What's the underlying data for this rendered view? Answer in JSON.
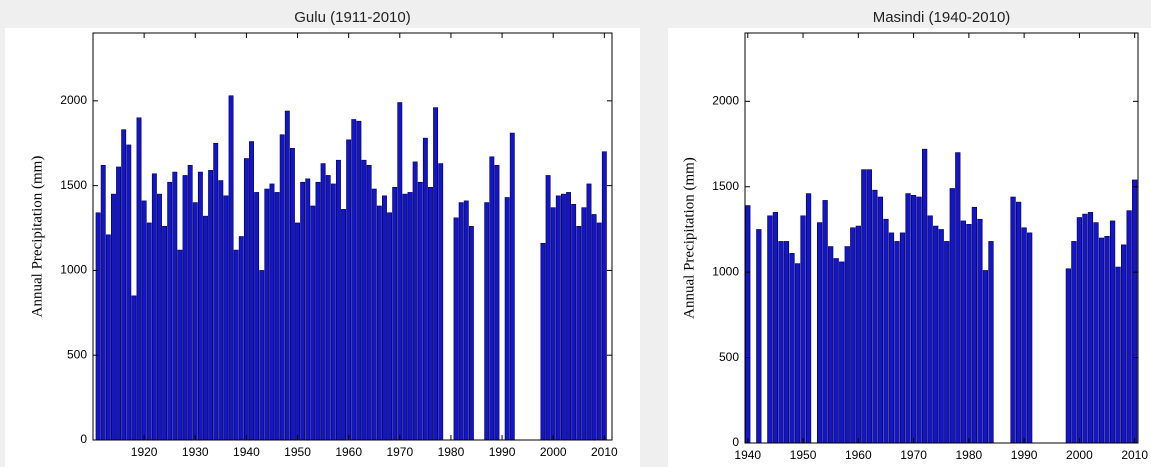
{
  "chart_data": [
    {
      "type": "bar",
      "title": "Gulu (1911-2010)",
      "y_label": "Annual Precipitation (mm)",
      "color": "#1414c8",
      "x": [
        1911,
        1912,
        1913,
        1914,
        1915,
        1916,
        1917,
        1918,
        1919,
        1920,
        1921,
        1922,
        1923,
        1924,
        1925,
        1926,
        1927,
        1928,
        1929,
        1930,
        1931,
        1932,
        1933,
        1934,
        1935,
        1936,
        1937,
        1938,
        1939,
        1940,
        1941,
        1942,
        1943,
        1944,
        1945,
        1946,
        1947,
        1948,
        1949,
        1950,
        1951,
        1952,
        1953,
        1954,
        1955,
        1956,
        1957,
        1958,
        1959,
        1960,
        1961,
        1962,
        1963,
        1964,
        1965,
        1966,
        1967,
        1968,
        1969,
        1970,
        1971,
        1972,
        1973,
        1974,
        1975,
        1976,
        1977,
        1978,
        1979,
        1980,
        1981,
        1982,
        1983,
        1984,
        1985,
        1986,
        1987,
        1988,
        1989,
        1990,
        1991,
        1992,
        1993,
        1994,
        1995,
        1996,
        1997,
        1998,
        1999,
        2000,
        2001,
        2002,
        2003,
        2004,
        2005,
        2006,
        2007,
        2008,
        2009,
        2010
      ],
      "values": [
        1340,
        1620,
        1210,
        1450,
        1610,
        1830,
        1740,
        850,
        1900,
        1410,
        1280,
        1570,
        1450,
        1260,
        1520,
        1580,
        1120,
        1560,
        1620,
        1400,
        1580,
        1320,
        1590,
        1750,
        1530,
        1440,
        2030,
        1120,
        1200,
        1660,
        1760,
        1460,
        1000,
        1480,
        1510,
        1460,
        1800,
        1940,
        1720,
        1280,
        1520,
        1540,
        1380,
        1520,
        1630,
        1560,
        1510,
        1650,
        1360,
        1770,
        1890,
        1880,
        1650,
        1620,
        1480,
        1380,
        1440,
        1340,
        1490,
        1990,
        1450,
        1460,
        1640,
        1520,
        1780,
        1490,
        1960,
        1630,
        null,
        null,
        1310,
        1400,
        1410,
        1260,
        null,
        null,
        1400,
        1670,
        1620,
        null,
        1430,
        1810,
        null,
        null,
        null,
        null,
        null,
        1160,
        1560,
        1370,
        1440,
        1450,
        1460,
        1390,
        1260,
        1370,
        1510,
        1330,
        1280,
        1700
      ],
      "xlim": [
        1910,
        2011.5
      ],
      "xticks": [
        1920,
        1930,
        1940,
        1950,
        1960,
        1970,
        1980,
        1990,
        2000,
        2010
      ],
      "ylim": [
        0,
        2400
      ],
      "yticks": [
        0,
        500,
        1000,
        1500,
        2000
      ]
    },
    {
      "type": "bar",
      "title": "Masindi (1940-2010)",
      "y_label": "Annual Precipitation (mm)",
      "color": "#1414c8",
      "x": [
        1940,
        1941,
        1942,
        1943,
        1944,
        1945,
        1946,
        1947,
        1948,
        1949,
        1950,
        1951,
        1952,
        1953,
        1954,
        1955,
        1956,
        1957,
        1958,
        1959,
        1960,
        1961,
        1962,
        1963,
        1964,
        1965,
        1966,
        1967,
        1968,
        1969,
        1970,
        1971,
        1972,
        1973,
        1974,
        1975,
        1976,
        1977,
        1978,
        1979,
        1980,
        1981,
        1982,
        1983,
        1984,
        1985,
        1986,
        1987,
        1988,
        1989,
        1990,
        1991,
        1992,
        1993,
        1994,
        1995,
        1996,
        1997,
        1998,
        1999,
        2000,
        2001,
        2002,
        2003,
        2004,
        2005,
        2006,
        2007,
        2008,
        2009,
        2010
      ],
      "values": [
        1390,
        null,
        1250,
        null,
        1330,
        1350,
        1180,
        1180,
        1110,
        1050,
        1330,
        1460,
        null,
        1290,
        1420,
        1150,
        1080,
        1060,
        1150,
        1260,
        1270,
        1600,
        1600,
        1480,
        1440,
        1310,
        1230,
        1180,
        1230,
        1460,
        1450,
        1440,
        1720,
        1330,
        1270,
        1250,
        1180,
        1490,
        1700,
        1300,
        1280,
        1380,
        1310,
        1010,
        1180,
        null,
        null,
        null,
        1440,
        1410,
        1260,
        1230,
        null,
        null,
        null,
        null,
        null,
        null,
        1020,
        1180,
        1320,
        1340,
        1350,
        1290,
        1200,
        1210,
        1300,
        1030,
        1160,
        1360,
        1540
      ],
      "xlim": [
        1939.5,
        2010.6
      ],
      "xticks": [
        1940,
        1950,
        1960,
        1970,
        1980,
        1990,
        2000,
        2010
      ],
      "ylim": [
        0,
        2400
      ],
      "yticks": [
        0,
        500,
        1000,
        1500,
        2000
      ]
    }
  ]
}
